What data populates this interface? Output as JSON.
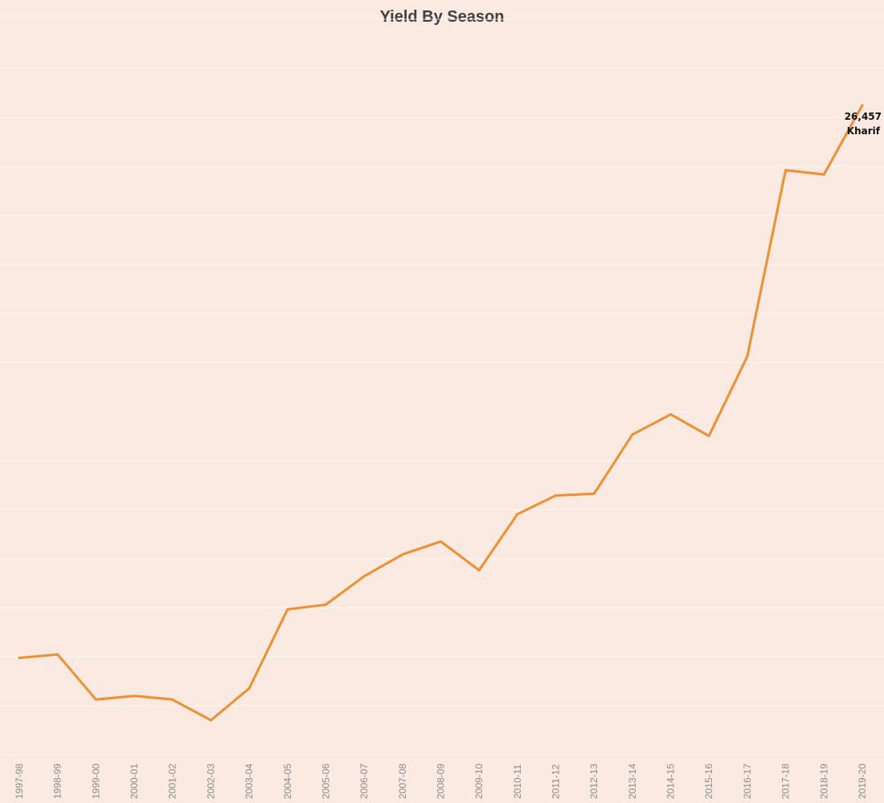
{
  "chart_data": {
    "type": "line",
    "title": "Yield By Season",
    "xlabel": "",
    "ylabel": "",
    "categories": [
      "1997-98",
      "1998-99",
      "1999-00",
      "2000-01",
      "2001-02",
      "2002-03",
      "2003-04",
      "2004-05",
      "2005-06",
      "2006-07",
      "2007-08",
      "2008-09",
      "2009-10",
      "2010-11",
      "2011-12",
      "2012-13",
      "2013-14",
      "2014-15",
      "2015-16",
      "2016-17",
      "2017-18",
      "2018-19",
      "2019-20"
    ],
    "series": [
      {
        "name": "Kharif",
        "values": [
          7230,
          7350,
          5780,
          5910,
          5780,
          5060,
          6170,
          8920,
          9080,
          10070,
          10830,
          11280,
          10280,
          12230,
          12880,
          12940,
          15000,
          15700,
          14950,
          17720,
          24200,
          24050,
          26457
        ]
      }
    ],
    "ylim": [
      0,
      26457
    ],
    "grid": true,
    "colors": {
      "series": "#f28e2b",
      "background": "#fbeae1"
    },
    "end_label": {
      "value_text": "26,457",
      "series_text": "Kharif"
    }
  }
}
